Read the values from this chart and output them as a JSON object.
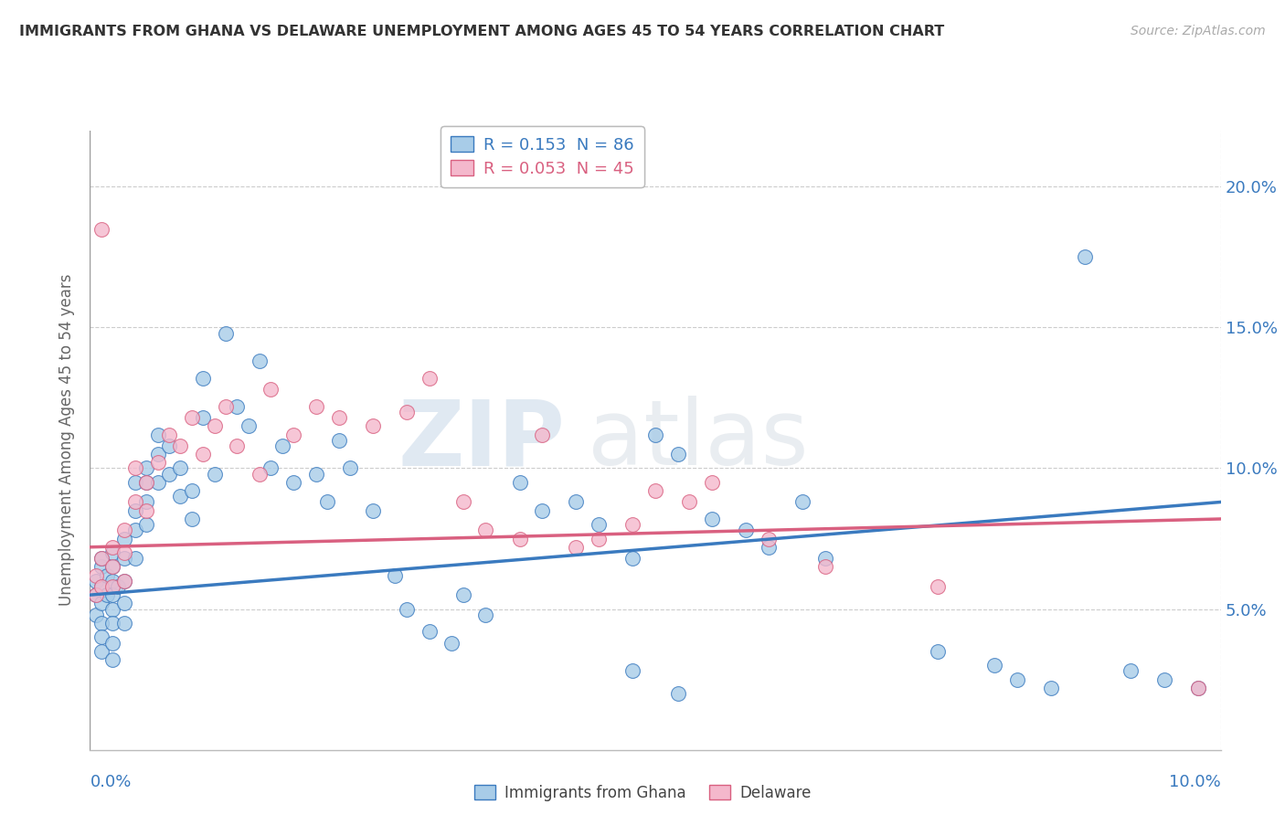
{
  "title": "IMMIGRANTS FROM GHANA VS DELAWARE UNEMPLOYMENT AMONG AGES 45 TO 54 YEARS CORRELATION CHART",
  "source": "Source: ZipAtlas.com",
  "ylabel": "Unemployment Among Ages 45 to 54 years",
  "xlim": [
    0.0,
    0.1
  ],
  "ylim": [
    0.0,
    0.22
  ],
  "yticks": [
    0.05,
    0.1,
    0.15,
    0.2
  ],
  "ytick_labels": [
    "5.0%",
    "10.0%",
    "15.0%",
    "20.0%"
  ],
  "color_blue": "#a8cce8",
  "color_pink": "#f4b8cc",
  "line_blue": "#3a7abf",
  "line_pink": "#d96080",
  "watermark_zip": "ZIP",
  "watermark_atlas": "atlas",
  "blue_r": 0.153,
  "blue_n": 86,
  "pink_r": 0.053,
  "pink_n": 45,
  "blue_line_x": [
    0.0,
    0.1
  ],
  "blue_line_y": [
    0.055,
    0.088
  ],
  "pink_line_x": [
    0.0,
    0.1
  ],
  "pink_line_y": [
    0.072,
    0.082
  ],
  "blue_points_x": [
    0.0005,
    0.0005,
    0.0005,
    0.001,
    0.001,
    0.001,
    0.001,
    0.001,
    0.001,
    0.001,
    0.0015,
    0.0015,
    0.002,
    0.002,
    0.002,
    0.002,
    0.002,
    0.002,
    0.002,
    0.002,
    0.0025,
    0.003,
    0.003,
    0.003,
    0.003,
    0.003,
    0.004,
    0.004,
    0.004,
    0.004,
    0.005,
    0.005,
    0.005,
    0.005,
    0.006,
    0.006,
    0.006,
    0.007,
    0.007,
    0.008,
    0.008,
    0.009,
    0.009,
    0.01,
    0.01,
    0.011,
    0.012,
    0.013,
    0.014,
    0.015,
    0.016,
    0.017,
    0.018,
    0.02,
    0.021,
    0.022,
    0.023,
    0.025,
    0.027,
    0.028,
    0.03,
    0.032,
    0.033,
    0.035,
    0.038,
    0.04,
    0.043,
    0.045,
    0.048,
    0.05,
    0.052,
    0.055,
    0.058,
    0.06,
    0.063,
    0.065,
    0.048,
    0.052,
    0.075,
    0.08,
    0.082,
    0.085,
    0.088,
    0.092,
    0.095,
    0.098
  ],
  "blue_points_y": [
    0.055,
    0.06,
    0.048,
    0.065,
    0.068,
    0.058,
    0.052,
    0.045,
    0.04,
    0.035,
    0.062,
    0.055,
    0.065,
    0.07,
    0.06,
    0.055,
    0.05,
    0.045,
    0.038,
    0.032,
    0.058,
    0.075,
    0.068,
    0.06,
    0.052,
    0.045,
    0.095,
    0.085,
    0.078,
    0.068,
    0.1,
    0.095,
    0.088,
    0.08,
    0.112,
    0.105,
    0.095,
    0.108,
    0.098,
    0.1,
    0.09,
    0.092,
    0.082,
    0.132,
    0.118,
    0.098,
    0.148,
    0.122,
    0.115,
    0.138,
    0.1,
    0.108,
    0.095,
    0.098,
    0.088,
    0.11,
    0.1,
    0.085,
    0.062,
    0.05,
    0.042,
    0.038,
    0.055,
    0.048,
    0.095,
    0.085,
    0.088,
    0.08,
    0.068,
    0.112,
    0.105,
    0.082,
    0.078,
    0.072,
    0.088,
    0.068,
    0.028,
    0.02,
    0.035,
    0.03,
    0.025,
    0.022,
    0.175,
    0.028,
    0.025,
    0.022
  ],
  "pink_points_x": [
    0.0005,
    0.0005,
    0.001,
    0.001,
    0.001,
    0.002,
    0.002,
    0.002,
    0.003,
    0.003,
    0.003,
    0.004,
    0.004,
    0.005,
    0.005,
    0.006,
    0.007,
    0.008,
    0.009,
    0.01,
    0.011,
    0.012,
    0.013,
    0.015,
    0.016,
    0.018,
    0.02,
    0.022,
    0.025,
    0.028,
    0.03,
    0.033,
    0.035,
    0.038,
    0.04,
    0.043,
    0.045,
    0.048,
    0.05,
    0.053,
    0.055,
    0.06,
    0.065,
    0.075,
    0.098
  ],
  "pink_points_y": [
    0.062,
    0.055,
    0.185,
    0.068,
    0.058,
    0.072,
    0.065,
    0.058,
    0.078,
    0.07,
    0.06,
    0.1,
    0.088,
    0.095,
    0.085,
    0.102,
    0.112,
    0.108,
    0.118,
    0.105,
    0.115,
    0.122,
    0.108,
    0.098,
    0.128,
    0.112,
    0.122,
    0.118,
    0.115,
    0.12,
    0.132,
    0.088,
    0.078,
    0.075,
    0.112,
    0.072,
    0.075,
    0.08,
    0.092,
    0.088,
    0.095,
    0.075,
    0.065,
    0.058,
    0.022
  ]
}
